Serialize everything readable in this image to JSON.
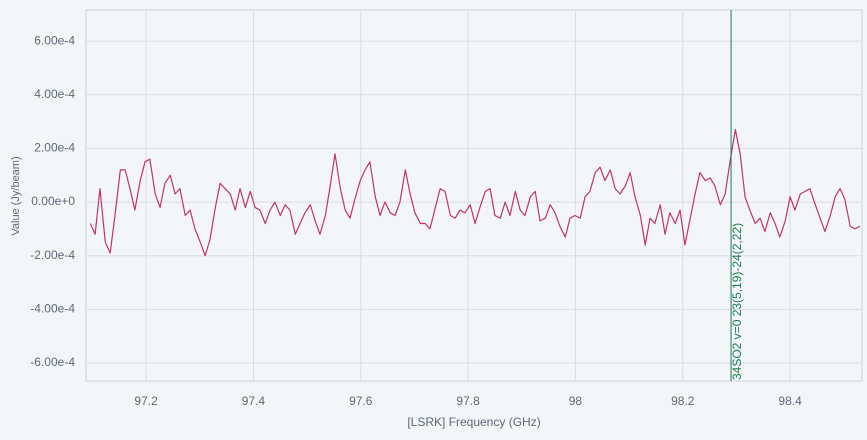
{
  "chart_data": {
    "type": "line",
    "xlabel": "[LSRK] Frequency (GHz)",
    "ylabel": "Value (Jy/beam)",
    "xlim": [
      97.088,
      98.534
    ],
    "ylim": [
      -0.000667,
      0.000716
    ],
    "xticks": [
      97.2,
      97.4,
      97.6,
      97.8,
      98,
      98.2,
      98.4
    ],
    "yticks": [
      {
        "value": -0.0006,
        "label": "-6.00e-4"
      },
      {
        "value": -0.0004,
        "label": "-4.00e-4"
      },
      {
        "value": -0.0002,
        "label": "-2.00e-4"
      },
      {
        "value": 0,
        "label": "0.00e+0"
      },
      {
        "value": 0.0002,
        "label": "2.00e-4"
      },
      {
        "value": 0.0004,
        "label": "4.00e-4"
      },
      {
        "value": 0.0006,
        "label": "6.00e-4"
      }
    ],
    "grid": true,
    "series": [
      {
        "color": "#c03468",
        "x": [
          97.096,
          97.105,
          97.114,
          97.124,
          97.133,
          97.142,
          97.152,
          97.161,
          97.17,
          97.179,
          97.189,
          97.198,
          97.207,
          97.217,
          97.226,
          97.235,
          97.245,
          97.254,
          97.263,
          97.273,
          97.282,
          97.291,
          97.301,
          97.31,
          97.319,
          97.329,
          97.338,
          97.347,
          97.357,
          97.366,
          97.375,
          97.385,
          97.394,
          97.403,
          97.412,
          97.422,
          97.431,
          97.44,
          97.45,
          97.459,
          97.468,
          97.478,
          97.487,
          97.496,
          97.506,
          97.515,
          97.524,
          97.534,
          97.543,
          97.552,
          97.562,
          97.571,
          97.58,
          97.589,
          97.599,
          97.608,
          97.617,
          97.627,
          97.636,
          97.645,
          97.655,
          97.664,
          97.673,
          97.683,
          97.692,
          97.701,
          97.711,
          97.72,
          97.729,
          97.739,
          97.748,
          97.757,
          97.767,
          97.776,
          97.785,
          97.794,
          97.804,
          97.813,
          97.822,
          97.832,
          97.841,
          97.85,
          97.86,
          97.869,
          97.878,
          97.888,
          97.897,
          97.906,
          97.916,
          97.925,
          97.934,
          97.944,
          97.953,
          97.962,
          97.971,
          97.981,
          97.99,
          97.999,
          98.009,
          98.018,
          98.027,
          98.037,
          98.046,
          98.055,
          98.065,
          98.074,
          98.083,
          98.093,
          98.102,
          98.111,
          98.121,
          98.13,
          98.139,
          98.148,
          98.158,
          98.167,
          98.176,
          98.186,
          98.195,
          98.204,
          98.214,
          98.223,
          98.232,
          98.242,
          98.251,
          98.26,
          98.27,
          98.279,
          98.288,
          98.298,
          98.307,
          98.316,
          98.325,
          98.335,
          98.344,
          98.353,
          98.363,
          98.372,
          98.381,
          98.391,
          98.4,
          98.409,
          98.419,
          98.428,
          98.437,
          98.447,
          98.456,
          98.465,
          98.475,
          98.484,
          98.493,
          98.502,
          98.512,
          98.521,
          98.53
        ],
        "values": [
          -8e-05,
          -0.00012,
          5e-05,
          -0.00015,
          -0.00019,
          -5e-05,
          0.00012,
          0.00012,
          5e-05,
          -3e-05,
          8e-05,
          0.00015,
          0.00016,
          3e-05,
          -2e-05,
          7e-05,
          0.0001,
          3e-05,
          5e-05,
          -5e-05,
          -3e-05,
          -0.0001,
          -0.00015,
          -0.0002,
          -0.00014,
          -2e-05,
          7e-05,
          5e-05,
          3e-05,
          -3e-05,
          5e-05,
          -2e-05,
          4e-05,
          -2e-05,
          -3e-05,
          -8e-05,
          -3e-05,
          0,
          -5e-05,
          -1e-05,
          -3e-05,
          -0.00012,
          -8e-05,
          -4e-05,
          -1e-05,
          -7e-05,
          -0.00012,
          -5e-05,
          6e-05,
          0.00018,
          5e-05,
          -3e-05,
          -6e-05,
          1e-05,
          8e-05,
          0.00012,
          0.00015,
          2e-05,
          -5e-05,
          0,
          -4e-05,
          -5e-05,
          0,
          0.00012,
          3e-05,
          -4e-05,
          -8e-05,
          -8e-05,
          -0.0001,
          -2e-05,
          5e-05,
          4e-05,
          -5e-05,
          -6e-05,
          -3e-05,
          -4e-05,
          -1e-05,
          -8e-05,
          -2e-05,
          4e-05,
          5e-05,
          -5e-05,
          -6e-05,
          0,
          -5e-05,
          4e-05,
          -3e-05,
          -5e-05,
          2e-05,
          4e-05,
          -7e-05,
          -6e-05,
          -1e-05,
          -4e-05,
          -9e-05,
          -0.00013,
          -6e-05,
          -5e-05,
          -6e-05,
          2e-05,
          4e-05,
          0.00011,
          0.00013,
          8e-05,
          0.00012,
          5e-05,
          3e-05,
          6e-05,
          0.00011,
          2e-05,
          -5e-05,
          -0.00016,
          -6e-05,
          -8e-05,
          -1e-05,
          -0.00012,
          -4e-05,
          -8e-05,
          -3e-05,
          -0.00016,
          -6e-05,
          3e-05,
          0.00011,
          8e-05,
          9e-05,
          6e-05,
          -1e-05,
          3e-05,
          0.00015,
          0.00027,
          0.00018,
          2e-05,
          -3e-05,
          -8e-05,
          -6e-05,
          -0.00011,
          -4e-05,
          -8e-05,
          -0.00013,
          -7e-05,
          2e-05,
          -3e-05,
          3e-05,
          4e-05,
          5e-05,
          -1e-05,
          -6e-05,
          -0.00011,
          -5e-05,
          2e-05,
          5e-05,
          1e-05,
          -9e-05,
          -0.0001,
          -9e-05
        ]
      }
    ],
    "markers": [
      {
        "x": 98.29,
        "label": "34SO2 v=0 23(5,19)-24(2,22)",
        "color": "#1b7a4e"
      }
    ]
  }
}
